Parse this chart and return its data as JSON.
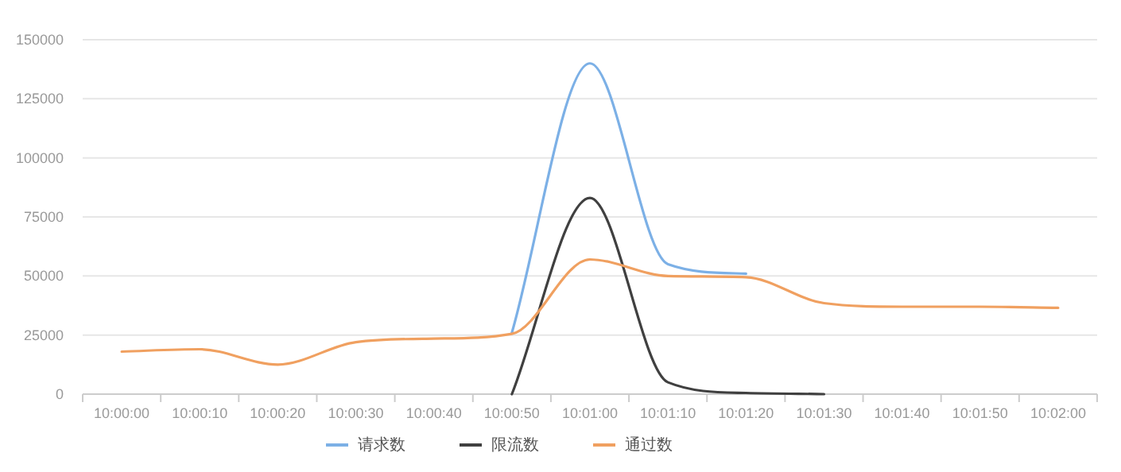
{
  "chart_data": {
    "type": "line",
    "categories": [
      "10:00:00",
      "10:00:10",
      "10:00:20",
      "10:00:30",
      "10:00:40",
      "10:00:50",
      "10:01:00",
      "10:01:10",
      "10:01:20",
      "10:01:30",
      "10:01:40",
      "10:01:50",
      "10:02:00"
    ],
    "series": [
      {
        "name": "请求数",
        "color": "#7cb0e6",
        "values": [
          null,
          null,
          null,
          null,
          null,
          26000,
          140000,
          55000,
          51000,
          null,
          null,
          null,
          null
        ]
      },
      {
        "name": "限流数",
        "color": "#404040",
        "values": [
          null,
          null,
          null,
          null,
          null,
          0,
          83000,
          5000,
          500,
          0,
          null,
          null,
          null
        ]
      },
      {
        "name": "通过数",
        "color": "#f0a060",
        "values": [
          18000,
          19000,
          12500,
          22000,
          23500,
          25500,
          57000,
          50000,
          49500,
          38500,
          37000,
          37000,
          36500
        ]
      }
    ],
    "ylim": [
      0,
      150000
    ],
    "yticks": [
      0,
      25000,
      50000,
      75000,
      100000,
      125000,
      150000
    ],
    "grid": "y",
    "legend": "bottom",
    "marker": "none",
    "line_style": "solid"
  }
}
